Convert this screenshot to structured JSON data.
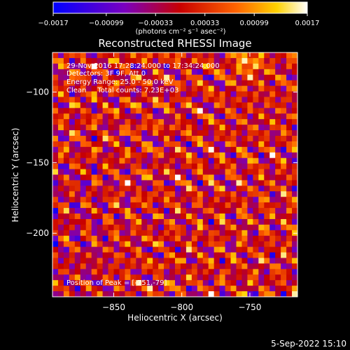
{
  "chart_data": {
    "type": "heatmap",
    "title": "Reconstructed RHESSI Image",
    "xlabel": "Heliocentric X (arcsec)",
    "ylabel": "Heliocentric Y (arcsec)",
    "xlim": [
      -895,
      -715
    ],
    "ylim": [
      -245,
      -72
    ],
    "x_ticks": [
      -850,
      -800,
      -750
    ],
    "x_tick_labels": [
      "−850",
      "−800",
      "−750"
    ],
    "y_ticks": [
      -100,
      -150,
      -200
    ],
    "y_tick_labels": [
      "−100",
      "−150",
      "−200"
    ],
    "annotations": [
      "29-Nov-2016 17:28:24.000 to 17:34:24.000",
      "Detectors: 3F 9F, Att 0",
      "Energy Range: 25.0 - 50.0 keV",
      "Clean     Total counts: 7.23E+03"
    ],
    "peak_label": "Position of Peak = [-751,-79]",
    "peak_position": [
      -751,
      -79
    ],
    "colorbar": {
      "range": [
        -0.0017,
        0.0017
      ],
      "ticks": [
        -0.0017,
        -0.00099,
        -0.00033,
        0.00033,
        0.00099,
        0.0017
      ],
      "tick_labels": [
        "−0.0017",
        "−0.00099",
        "−0.00033",
        "0.00033",
        "0.00099",
        "0.0017"
      ],
      "unit_label": "(photons cm⁻² s⁻¹ asec⁻²)",
      "colormap": "blue-purple-red-orange-yellow-white"
    }
  },
  "footer": {
    "date": "5-Sep-2022 15:10"
  }
}
